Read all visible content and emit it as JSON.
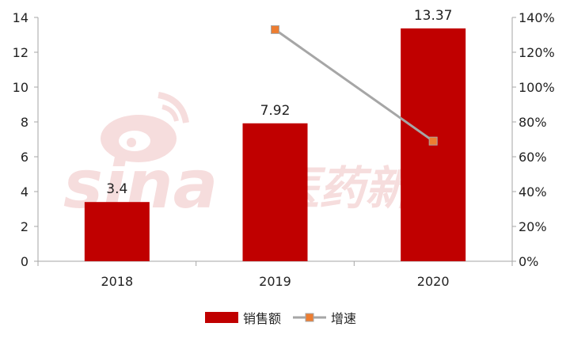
{
  "chart_data": {
    "type": "bar",
    "categories": [
      "2018",
      "2019",
      "2020"
    ],
    "series": [
      {
        "name": "销售额",
        "kind": "bar",
        "axis": "left",
        "color": "#C00000",
        "values": [
          3.4,
          7.92,
          13.37
        ],
        "data_labels": [
          "3.4",
          "7.92",
          "13.37"
        ]
      },
      {
        "name": "增速",
        "kind": "line",
        "axis": "right",
        "color": "#A6A6A6",
        "marker_color": "#ED7D31",
        "values": [
          null,
          133,
          69
        ]
      }
    ],
    "y_left": {
      "ylim": [
        0,
        14
      ],
      "ticks": [
        "0",
        "2",
        "4",
        "6",
        "8",
        "10",
        "12",
        "14"
      ]
    },
    "y_right": {
      "ylim": [
        0,
        140
      ],
      "ticks": [
        "0%",
        "20%",
        "40%",
        "60%",
        "80%",
        "100%",
        "120%",
        "140%"
      ]
    },
    "grid": false,
    "legend_position": "bottom"
  },
  "watermark": {
    "brand": "sina",
    "label": "医药新闻"
  }
}
